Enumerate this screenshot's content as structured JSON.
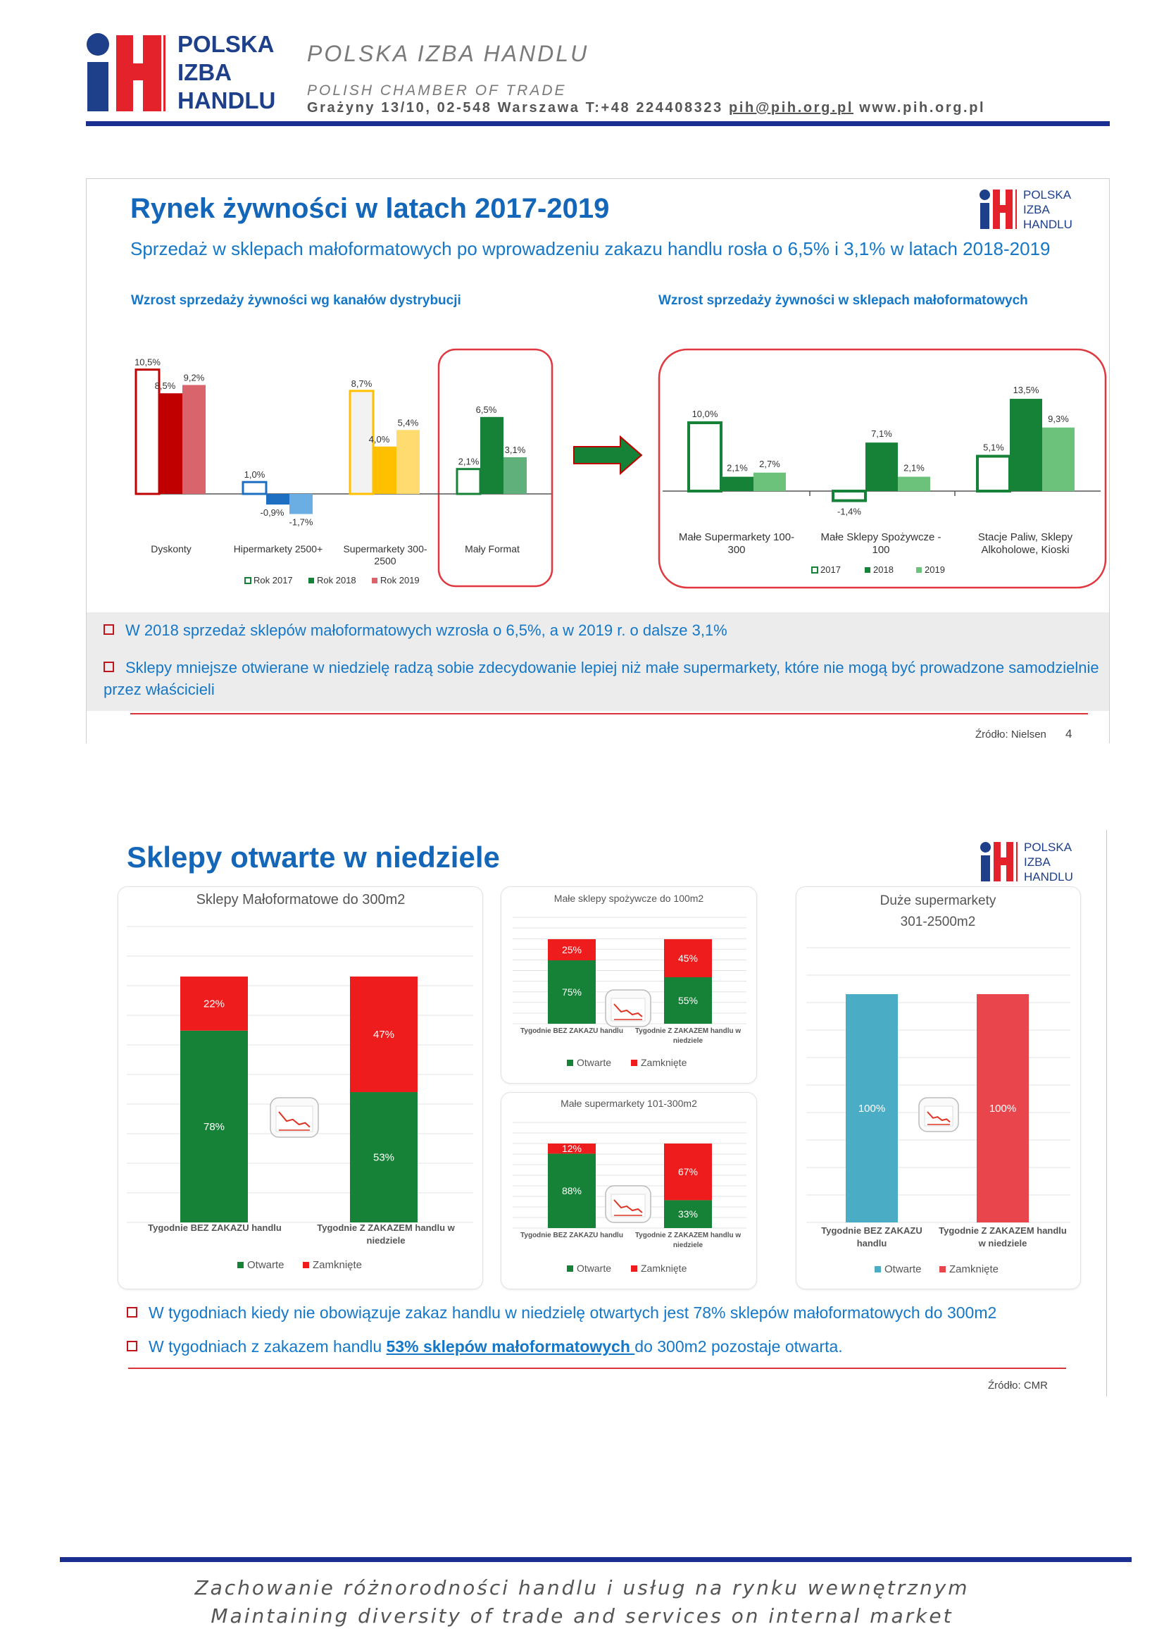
{
  "letterhead": {
    "logo_lines": [
      "POLSKA",
      "IZBA",
      "HANDLU"
    ],
    "title": "POLSKA IZBA HANDLU",
    "subtitle": "POLISH CHAMBER OF TRADE",
    "address": "Grażyny 13/10, 02-548 Warszawa T:+48 224408323",
    "email": "pih@pih.org.pl",
    "website": "www.pih.org.pl"
  },
  "slide1": {
    "title": "Rynek żywności w latach 2017-2019",
    "subtitle": "Sprzedaż w sklepach małoformatowych po wprowadzeniu zakazu handlu rosła o 6,5% i 3,1% w latach 2018-2019",
    "logo_lines": [
      "POLSKA",
      "IZBA",
      "HANDLU"
    ],
    "left_heading": "Wzrost sprzedaży żywności wg kanałów dystrybucji",
    "right_heading": "Wzrost sprzedaży żywności w sklepach małoformatowych",
    "bullets": [
      "W 2018 sprzedaż sklepów małoformatowych wzrosła o 6,5%, a w 2019 r. o dalsze 3,1%",
      "Sklepy mniejsze otwierane w niedzielę radzą sobie zdecydowanie lepiej niż małe supermarkety, które nie mogą być prowadzone samodzielnie przez właścicieli"
    ],
    "source": "Źródło: Nielsen",
    "page_number": "4"
  },
  "slide2": {
    "title": "Sklepy otwarte w niedziele",
    "logo_lines": [
      "POLSKA",
      "IZBA",
      "HANDLU"
    ],
    "bullets": [
      {
        "text": "W tygodniach kiedy nie obowiązuje zakaz handlu w niedzielę otwartych jest 78% sklepów małoformatowych do 300m2"
      },
      {
        "before": "W tygodniach z zakazem handlu ",
        "link": "53% sklepów małoformatowych ",
        "after": "do 300m2 pozostaje otwarta."
      }
    ],
    "source": "Źródło: CMR"
  },
  "footer": {
    "line1": "Zachowanie różnorodności handlu i usług na rynku wewnętrznym",
    "line2": "Maintaining diversity of trade and services on internal market"
  },
  "colors": {
    "brand_blue": "#1e3f8a",
    "brand_red": "#e4222b",
    "text_blue": "#1577c8",
    "open_green": "#168237",
    "closed_red": "#ee1c1c"
  },
  "chart_data": [
    {
      "id": "channels",
      "type": "bar",
      "categories": [
        "Dyskonty",
        "Hipermarkety 2500+",
        "Supermarkety 300-2500",
        "Mały Format"
      ],
      "series": [
        {
          "name": "Rok 2017",
          "values": [
            10.5,
            1.0,
            8.7,
            2.1
          ],
          "labels": [
            "10,5%",
            "1,0%",
            "8,7%",
            "2,1%"
          ]
        },
        {
          "name": "Rok 2018",
          "values": [
            8.5,
            -0.9,
            4.0,
            6.5
          ],
          "labels": [
            "8,5%",
            "-0,9%",
            "4,0%",
            "6,5%"
          ]
        },
        {
          "name": "Rok 2019",
          "values": [
            9.2,
            -1.7,
            5.4,
            3.1
          ],
          "labels": [
            "9,2%",
            "-1,7%",
            "5,4%",
            "3,1%"
          ]
        }
      ],
      "group_colors": [
        [
          "#ffffff",
          "#c00000",
          "#d9646b"
        ],
        [
          "#ffffff",
          "#1e6fc2",
          "#6aaee3"
        ],
        [
          "#f2f2f2",
          "#ffc000",
          "#ffdb70"
        ],
        [
          "#ffffff",
          "#168237",
          "#5fb07a"
        ]
      ],
      "outline_colors": [
        "#c00000",
        "#1e6fc2",
        "#ffc000",
        "#168237"
      ]
    },
    {
      "id": "small_format",
      "type": "bar",
      "categories": [
        "Małe Supermarkety 100-300",
        "Małe Sklepy Spożywcze - 100",
        "Stacje Paliw, Sklepy Alkoholowe, Kioski"
      ],
      "series": [
        {
          "name": "2017",
          "values": [
            10.0,
            -1.4,
            5.1
          ],
          "labels": [
            "10,0%",
            "-1,4%",
            "5,1%"
          ],
          "color": "#ffffff"
        },
        {
          "name": "2018",
          "values": [
            2.1,
            7.1,
            13.5
          ],
          "labels": [
            "2,1%",
            "7,1%",
            "13,5%"
          ],
          "color": "#168237"
        },
        {
          "name": "2019",
          "values": [
            2.7,
            2.1,
            9.3
          ],
          "labels": [
            "2,7%",
            "2,1%",
            "9,3%"
          ],
          "color": "#6cc27a"
        }
      ]
    },
    {
      "id": "small_format_300",
      "type": "bar",
      "stacked": true,
      "title": "Sklepy Małoformatowe do 300m2",
      "categories": [
        "Tygodnie BEZ ZAKAZU handlu",
        "Tygodnie Z ZAKAZEM handlu w niedziele"
      ],
      "series": [
        {
          "name": "Otwarte",
          "values": [
            78,
            53
          ],
          "labels": [
            "78%",
            "53%"
          ]
        },
        {
          "name": "Zamknięte",
          "values": [
            22,
            47
          ],
          "labels": [
            "22%",
            "47%"
          ]
        }
      ]
    },
    {
      "id": "small_grocery_100",
      "type": "bar",
      "stacked": true,
      "title": "Małe sklepy spożywcze do 100m2",
      "categories": [
        "Tygodnie BEZ ZAKAZU handlu",
        "Tygodnie Z ZAKAZEM handlu w niedziele"
      ],
      "series": [
        {
          "name": "Otwarte",
          "values": [
            75,
            55
          ],
          "labels": [
            "75%",
            "55%"
          ]
        },
        {
          "name": "Zamknięte",
          "values": [
            25,
            45
          ],
          "labels": [
            "25%",
            "45%"
          ]
        }
      ]
    },
    {
      "id": "small_super_101_300",
      "type": "bar",
      "stacked": true,
      "title": "Małe supermarkety 101-300m2",
      "categories": [
        "Tygodnie BEZ ZAKAZU handlu",
        "Tygodnie Z ZAKAZEM handlu w niedziele"
      ],
      "series": [
        {
          "name": "Otwarte",
          "values": [
            88,
            33
          ],
          "labels": [
            "88%",
            "33%"
          ]
        },
        {
          "name": "Zamknięte",
          "values": [
            12,
            67
          ],
          "labels": [
            "12%",
            "67%"
          ]
        }
      ]
    },
    {
      "id": "large_super",
      "type": "bar",
      "stacked": true,
      "title": "Duże supermarkety 301-2500m2",
      "categories": [
        "Tygodnie BEZ ZAKAZU handlu",
        "Tygodnie Z ZAKAZEM handlu w niedziele"
      ],
      "series": [
        {
          "name": "Otwarte",
          "values": [
            100,
            0
          ],
          "labels": [
            "100%",
            ""
          ],
          "color": "#4bacc6"
        },
        {
          "name": "Zamknięte",
          "values": [
            0,
            100
          ],
          "labels": [
            "",
            "100%"
          ],
          "color": "#e8464c"
        }
      ]
    }
  ]
}
